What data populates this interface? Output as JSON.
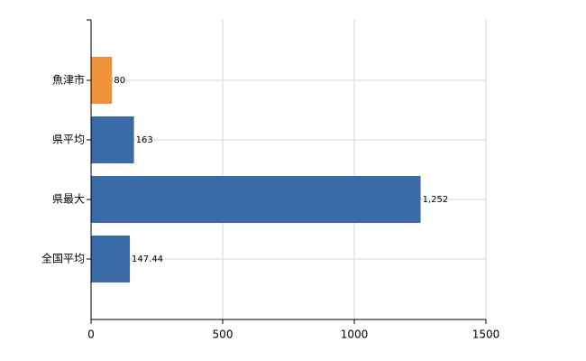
{
  "chart_data": {
    "type": "bar",
    "orientation": "horizontal",
    "categories": [
      "魚津市",
      "県平均",
      "県最大",
      "全国平均"
    ],
    "values": [
      80,
      163,
      1252,
      147.44
    ],
    "value_labels": [
      "80",
      "163",
      "1,252",
      "147.44"
    ],
    "colors": [
      "#f0923a",
      "#3b6aa8",
      "#3b6aa8",
      "#3b6aa8"
    ],
    "xlim": [
      0,
      1500
    ],
    "xticks": [
      0,
      500,
      1000,
      1500
    ],
    "grid": true
  }
}
